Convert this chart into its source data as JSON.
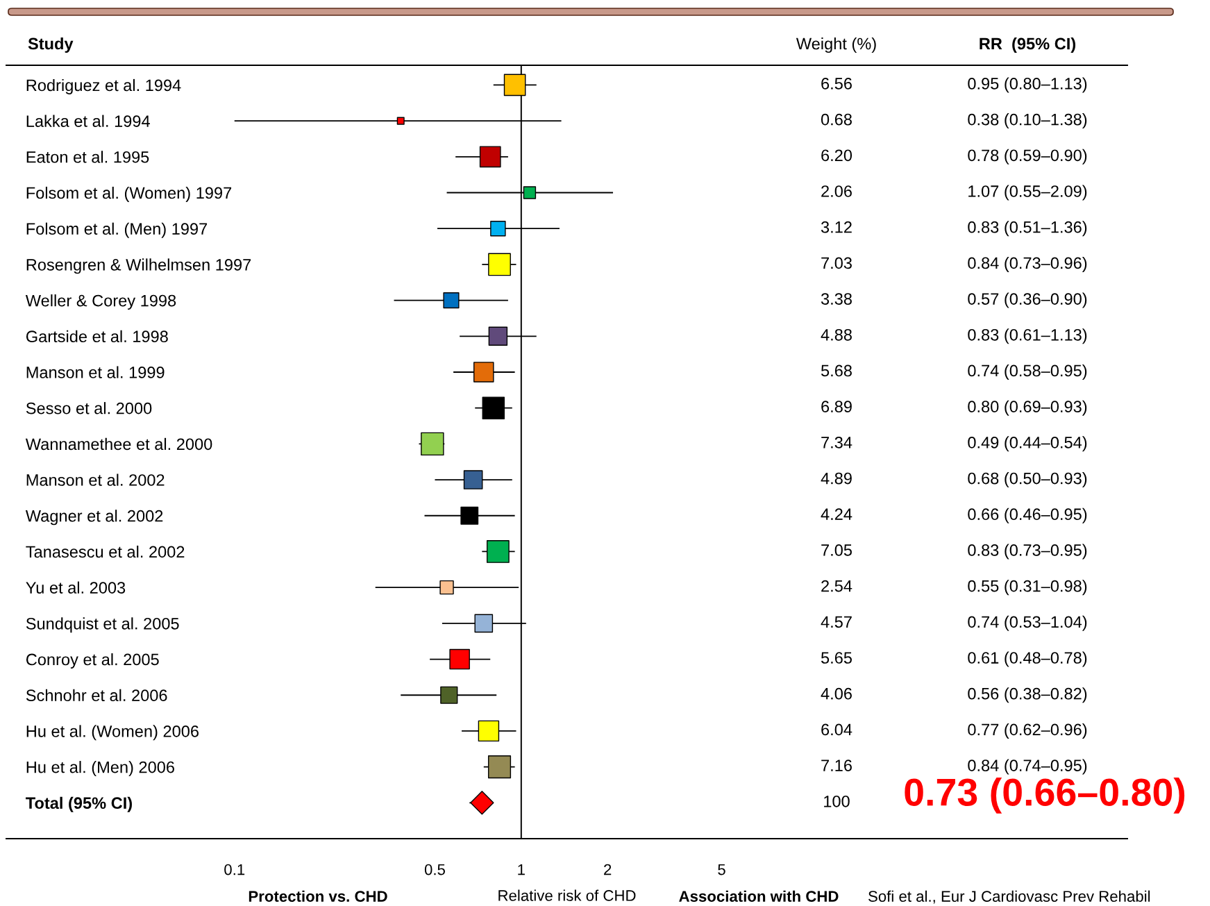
{
  "chart_data": {
    "type": "bubble",
    "orientation": "horizontal",
    "xlabel": "Relative risk of CHD",
    "categories": [
      "Rodriguez et al. 1994",
      "Lakka et al. 1994",
      "Eaton et al. 1995",
      "Folsom et al. (Women) 1997",
      "Folsom et al. (Men) 1997",
      "Rosengren & Wilhelmsen 1997",
      "Weller & Corey 1998",
      "Gartside et al. 1998",
      "Manson et al. 1999",
      "Sesso et al. 2000",
      "Wannamethee et al. 2000",
      "Manson et al. 2002",
      "Wagner et al. 2002",
      "Tanasescu et al. 2002",
      "Yu et al. 2003",
      "Sundquist et al. 2005",
      "Conroy et al. 2005",
      "Schnohr et al. 2006",
      "Hu et al. (Women) 2006",
      "Hu et al. (Men) 2006",
      "Total (95% CI)"
    ],
    "series": [
      {
        "marker": "square",
        "values": [
          0.95,
          0.38,
          0.78,
          1.07,
          0.83,
          0.84,
          0.57,
          0.83,
          0.74,
          0.8,
          0.49,
          0.68,
          0.66,
          0.83,
          0.55,
          0.74,
          0.61,
          0.56,
          0.77,
          0.84,
          null
        ],
        "errors": [
          [
            0.8,
            1.13
          ],
          [
            0.1,
            1.38
          ],
          [
            0.59,
            0.9
          ],
          [
            0.55,
            2.09
          ],
          [
            0.51,
            1.36
          ],
          [
            0.73,
            0.96
          ],
          [
            0.36,
            0.9
          ],
          [
            0.61,
            1.13
          ],
          [
            0.58,
            0.95
          ],
          [
            0.69,
            0.93
          ],
          [
            0.44,
            0.54
          ],
          [
            0.5,
            0.93
          ],
          [
            0.46,
            0.95
          ],
          [
            0.73,
            0.95
          ],
          [
            0.31,
            0.98
          ],
          [
            0.53,
            1.04
          ],
          [
            0.48,
            0.78
          ],
          [
            0.38,
            0.82
          ],
          [
            0.62,
            0.96
          ],
          [
            0.74,
            0.95
          ],
          null
        ],
        "sizes": [
          0.89,
          0.09,
          0.84,
          0.28,
          0.43,
          0.96,
          0.46,
          0.66,
          0.77,
          0.94,
          1,
          0.67,
          0.58,
          0.96,
          0.35,
          0.62,
          0.77,
          0.55,
          0.82,
          0.98,
          null
        ],
        "colors": [
          "#ffc000",
          "#ff0000",
          "#c00000",
          "#00b050",
          "#00b0f0",
          "#ffff00",
          "#0070c0",
          "#604a7b",
          "#e36c09",
          "#000000",
          "#92d050",
          "#376092",
          "#000000",
          "#00b050",
          "#fac090",
          "#95b3d7",
          "#ff0000",
          "#4f6228",
          "#ffff00",
          "#948a54",
          null
        ]
      },
      {
        "marker": "diamond",
        "color": "#ff0000",
        "values": [
          null,
          null,
          null,
          null,
          null,
          null,
          null,
          null,
          null,
          null,
          null,
          null,
          null,
          null,
          null,
          null,
          null,
          null,
          null,
          null,
          0.73
        ],
        "errors": [
          null,
          null,
          null,
          null,
          null,
          null,
          null,
          null,
          null,
          null,
          null,
          null,
          null,
          null,
          null,
          null,
          null,
          null,
          null,
          null,
          [
            0.66,
            0.8
          ]
        ]
      }
    ],
    "log": "x",
    "xlim": [
      0.016,
      130
    ],
    "xticks": [
      0.1,
      0.5,
      1,
      2,
      5
    ],
    "ref_lines": [
      {
        "axis": "x",
        "value": 1,
        "color": "#000000"
      }
    ],
    "annotations": [
      "Study",
      "Weight (%)",
      "RR  (95% CI)",
      "Protection vs. CHD",
      "Association with CHD",
      "Sofi et al., Eur J Cardiovasc Prev Rehabil",
      "6.56",
      "0.95 (0.80–1.13)",
      "0.68",
      "0.38 (0.10–1.38)",
      "6.20",
      "0.78 (0.59–0.90)",
      "2.06",
      "1.07 (0.55–2.09)",
      "3.12",
      "0.83 (0.51–1.36)",
      "7.03",
      "0.84 (0.73–0.96)",
      "3.38",
      "0.57 (0.36–0.90)",
      "4.88",
      "0.83 (0.61–1.13)",
      "5.68",
      "0.74 (0.58–0.95)",
      "6.89",
      "0.80 (0.69–0.93)",
      "7.34",
      "0.49 (0.44–0.54)",
      "4.89",
      "0.68 (0.50–0.93)",
      "4.24",
      "0.66 (0.46–0.95)",
      "7.05",
      "0.83 (0.73–0.95)",
      "2.54",
      "0.55 (0.31–0.98)",
      "4.57",
      "0.74 (0.53–1.04)",
      "5.65",
      "0.61 (0.48–0.78)",
      "4.06",
      "0.56 (0.38–0.82)",
      "6.04",
      "0.77 (0.62–0.96)",
      "7.16",
      "0.84 (0.74–0.95)",
      "100",
      "0.73 (0.66–0.80)"
    ]
  }
}
